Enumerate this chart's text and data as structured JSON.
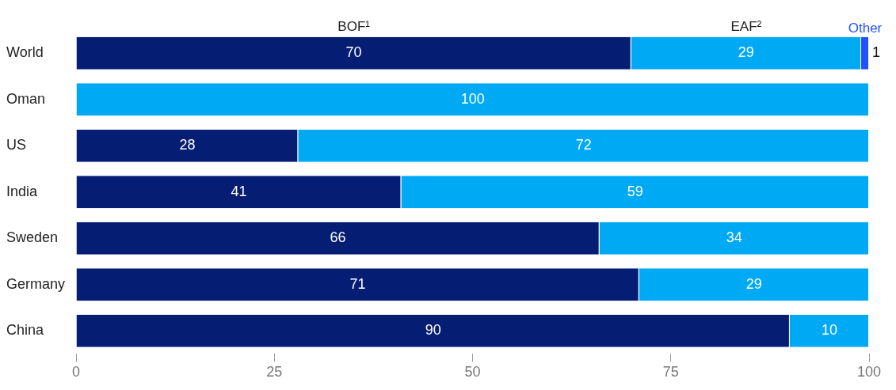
{
  "chart_data": {
    "type": "bar",
    "orientation": "horizontal",
    "stacked": true,
    "data_labels": true,
    "categories": [
      "World",
      "Oman",
      "US",
      "India",
      "Sweden",
      "Germany",
      "China"
    ],
    "series": [
      {
        "name": "BOF¹",
        "color": "#061d74",
        "values": [
          70,
          null,
          28,
          41,
          66,
          71,
          90
        ]
      },
      {
        "name": "EAF²",
        "color": "#00a9f4",
        "values": [
          29,
          100,
          72,
          59,
          34,
          29,
          10
        ]
      },
      {
        "name": "Other",
        "color": "#2251ff",
        "values": [
          1,
          null,
          null,
          null,
          null,
          null,
          null
        ]
      }
    ],
    "xlim": [
      0,
      100
    ],
    "xticks": [
      0,
      25,
      50,
      75,
      100
    ]
  }
}
